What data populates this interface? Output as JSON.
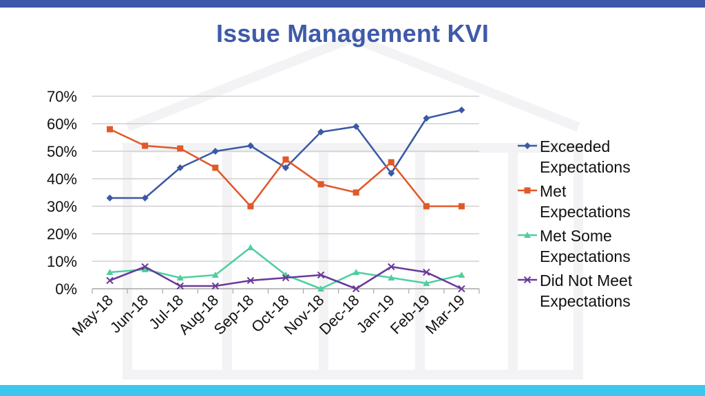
{
  "page": {
    "title": "Issue Management KVI",
    "colors": {
      "top_bar": "#3d58a8",
      "bottom_bar": "#3cc6ee",
      "title": "#3f5aa8"
    }
  },
  "chart_data": {
    "type": "line",
    "title": "",
    "xlabel": "",
    "ylabel": "",
    "categories": [
      "May-18",
      "Jun-18",
      "Jul-18",
      "Aug-18",
      "Sep-18",
      "Oct-18",
      "Nov-18",
      "Dec-18",
      "Jan-19",
      "Feb-19",
      "Mar-19"
    ],
    "ylim": [
      0,
      0.7
    ],
    "yticks": [
      0,
      0.1,
      0.2,
      0.3,
      0.4,
      0.5,
      0.6,
      0.7
    ],
    "ytick_labels": [
      "0%",
      "10%",
      "20%",
      "30%",
      "40%",
      "50%",
      "60%",
      "70%"
    ],
    "grid": true,
    "legend_position": "right",
    "series": [
      {
        "name": "Exceeded Expectations",
        "color": "#3a5aa6",
        "marker": "diamond",
        "values": [
          0.33,
          0.33,
          0.44,
          0.5,
          0.52,
          0.44,
          0.57,
          0.59,
          0.42,
          0.62,
          0.65
        ]
      },
      {
        "name": "Met Expectations",
        "color": "#e0592a",
        "marker": "square",
        "values": [
          0.58,
          0.52,
          0.51,
          0.44,
          0.3,
          0.47,
          0.38,
          0.35,
          0.46,
          0.3,
          0.3
        ]
      },
      {
        "name": "Met Some Expectations",
        "color": "#4fcf9f",
        "marker": "triangle",
        "values": [
          0.06,
          0.07,
          0.04,
          0.05,
          0.15,
          0.05,
          0.0,
          0.06,
          0.04,
          0.02,
          0.05
        ]
      },
      {
        "name": "Did Not Meet Expectations",
        "color": "#6a3a9a",
        "marker": "x",
        "values": [
          0.03,
          0.08,
          0.01,
          0.01,
          0.03,
          0.04,
          0.05,
          0.0,
          0.08,
          0.06,
          0.0
        ]
      }
    ]
  }
}
